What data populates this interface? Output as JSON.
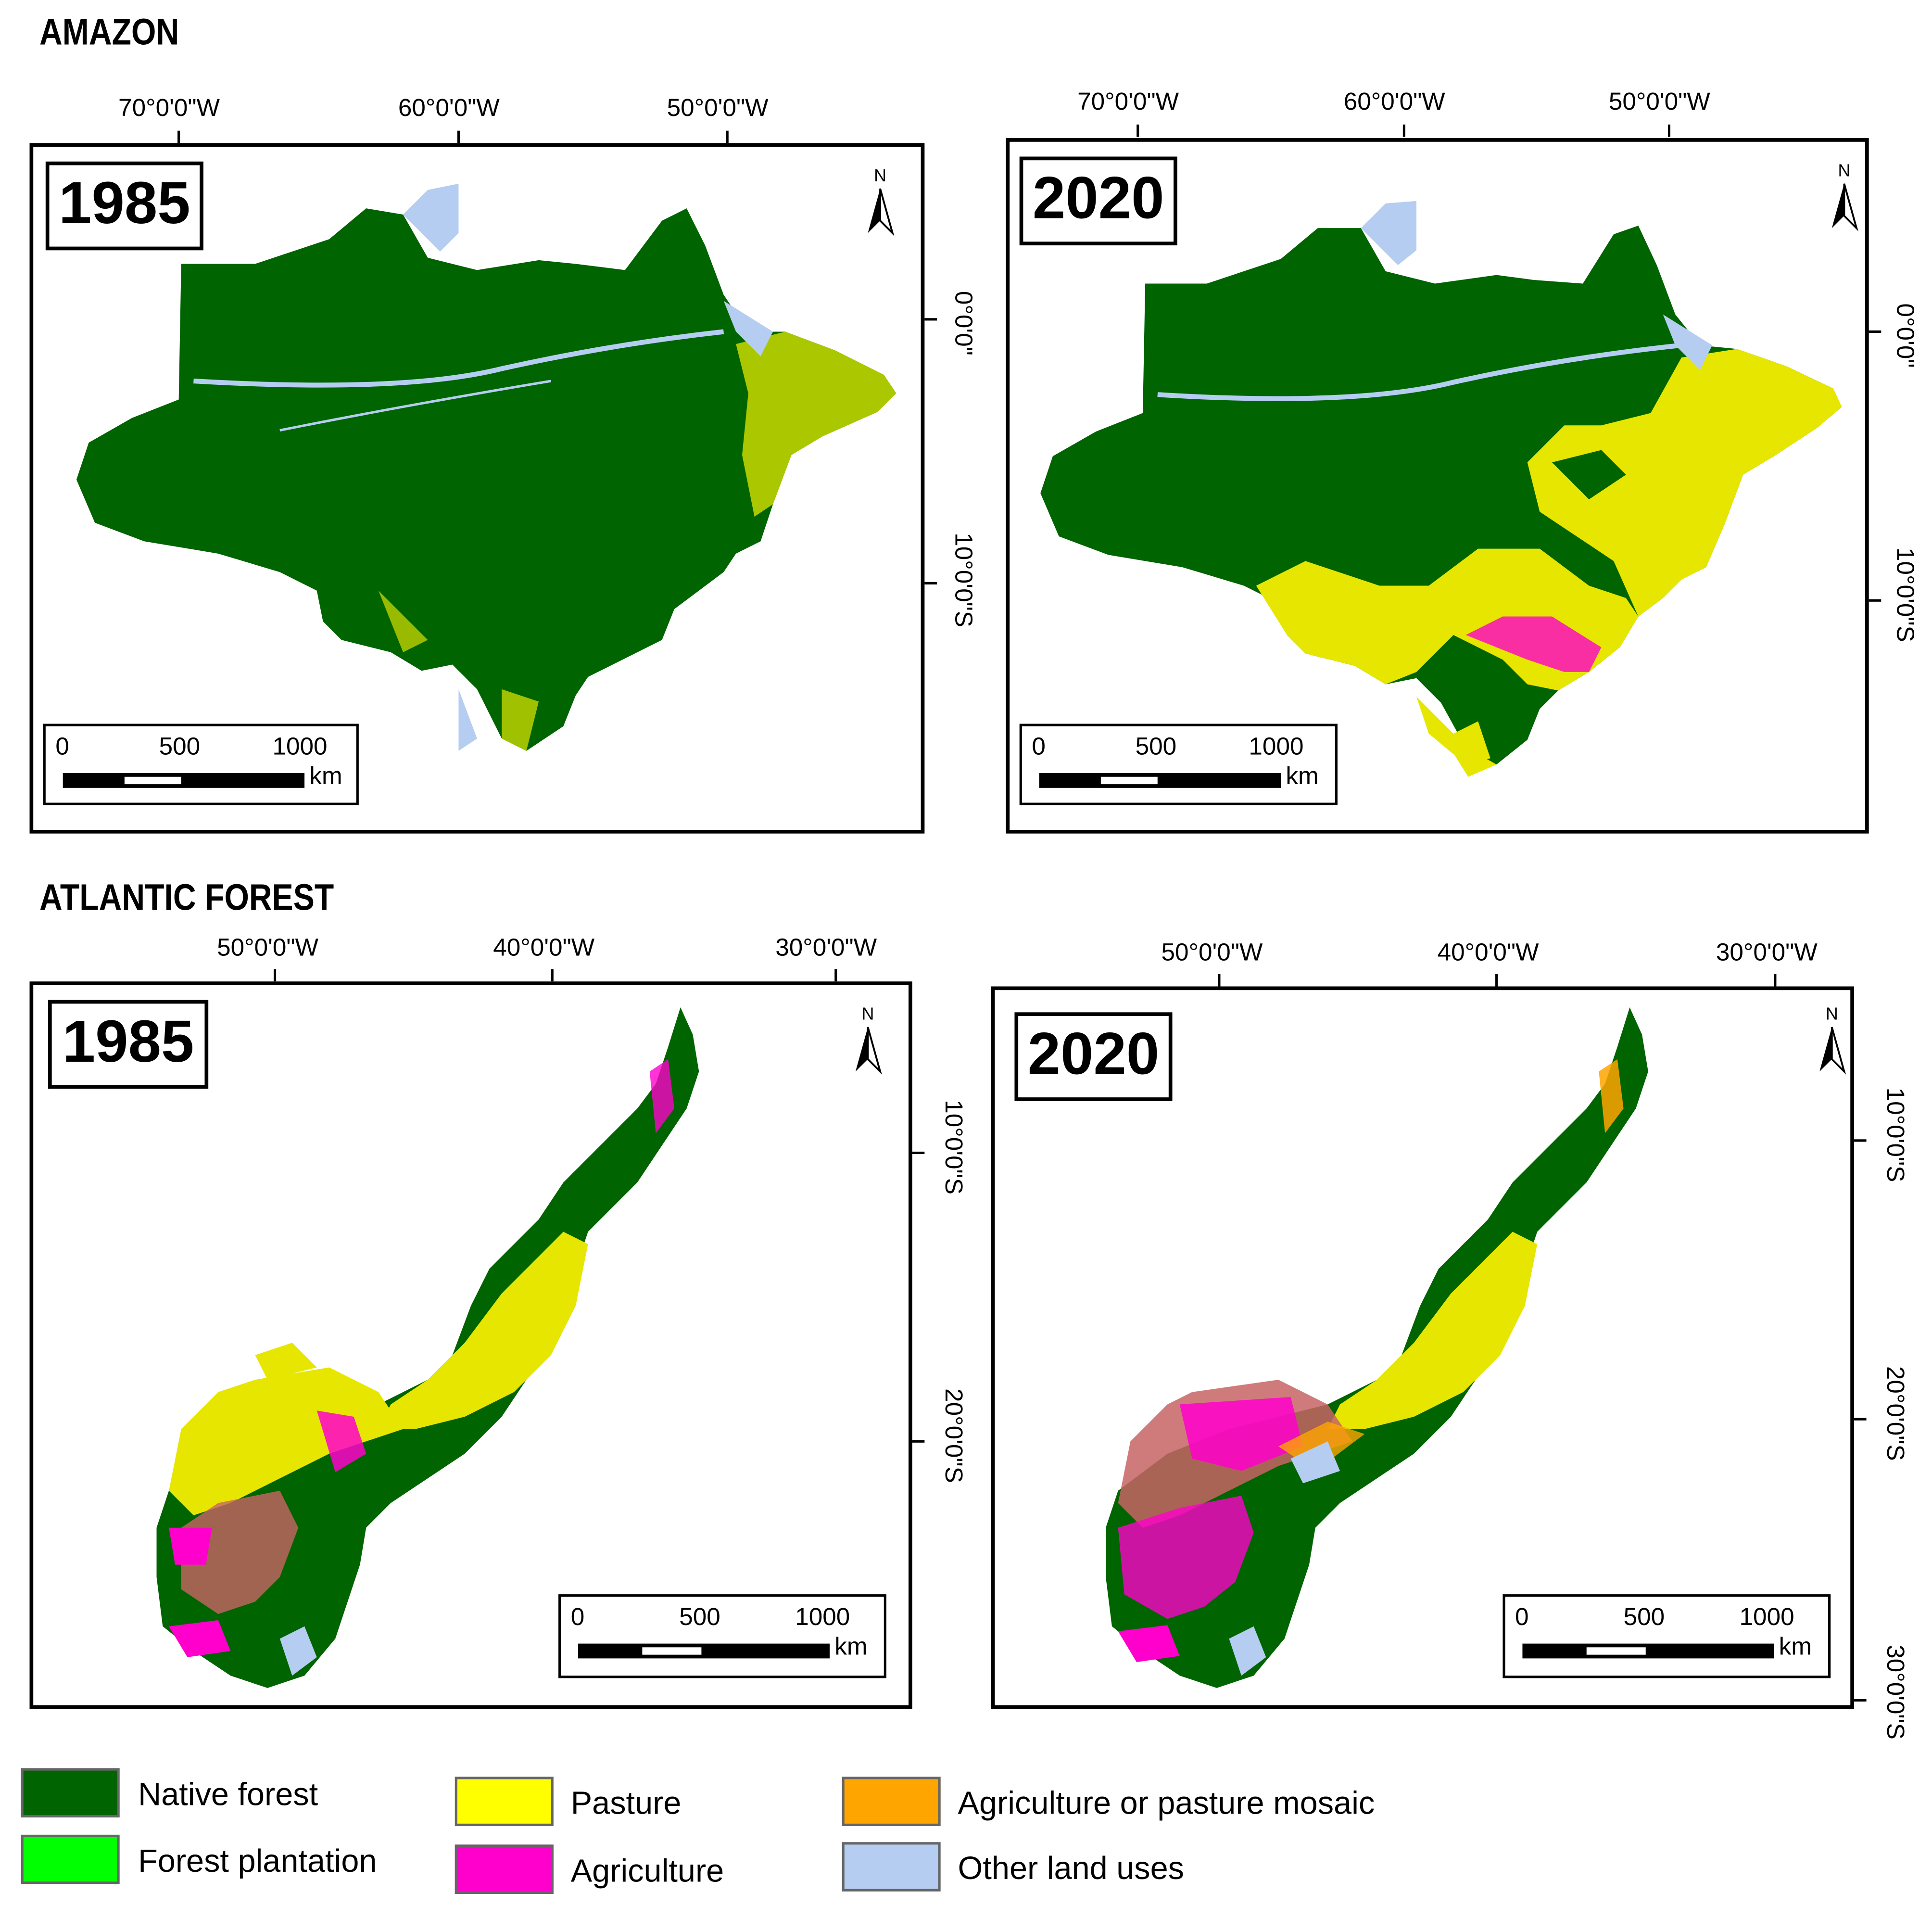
{
  "sections": {
    "amazon": {
      "title": "AMAZON",
      "map_1985": {
        "year": "1985",
        "top_coords": [
          "70°0'0\"W",
          "60°0'0\"W",
          "50°0'0\"W"
        ],
        "right_coords": [
          "0°0'0\"",
          "10°0'0\"S"
        ]
      },
      "map_2020": {
        "year": "2020",
        "top_coords": [
          "70°0'0\"W",
          "60°0'0\"W",
          "50°0'0\"W"
        ],
        "right_coords": [
          "0°0'0\"",
          "10°0'0\"S"
        ]
      }
    },
    "atlantic": {
      "title": "ATLANTIC FOREST",
      "map_1985": {
        "year": "1985",
        "top_coords": [
          "50°0'0\"W",
          "40°0'0\"W",
          "30°0'0\"W"
        ],
        "right_coords": [
          "10°0'0\"S",
          "20°0'0\"S"
        ]
      },
      "map_2020": {
        "year": "2020",
        "top_coords": [
          "50°0'0\"W",
          "40°0'0\"W",
          "30°0'0\"W"
        ],
        "right_coords": [
          "10°0'0\"S",
          "20°0'0\"S",
          "30°0'0\"S"
        ]
      }
    }
  },
  "scalebar": {
    "labels": [
      "0",
      "500",
      "1000"
    ],
    "unit": "km"
  },
  "north_label": "N",
  "legend": [
    {
      "label": "Native forest",
      "color": "#006400"
    },
    {
      "label": "Forest plantation",
      "color": "#00ff00"
    },
    {
      "label": "Pasture",
      "color": "#ffff00"
    },
    {
      "label": "Agriculture",
      "color": "#ff00cc"
    },
    {
      "label": "Agriculture or pasture mosaic",
      "color": "#ffa500"
    },
    {
      "label": "Other land uses",
      "color": "#b4cdf0"
    }
  ]
}
